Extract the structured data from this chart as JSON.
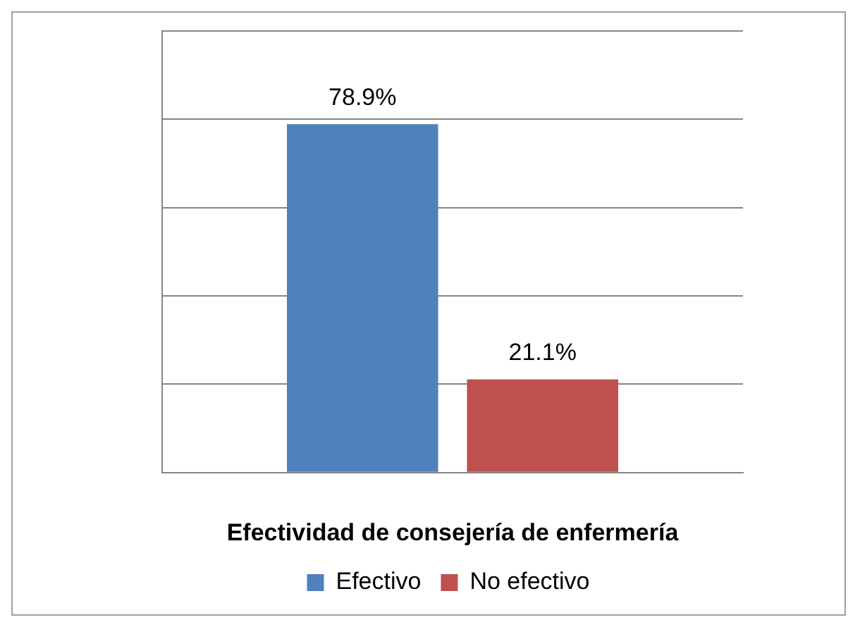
{
  "chart_data": {
    "type": "bar",
    "xlabel": "Efectividad de consejería de enfermería",
    "categories": [
      null
    ],
    "series": [
      {
        "name": "Efectivo",
        "color": "#4f81bd",
        "values": [
          78.9
        ],
        "value_labels": [
          "78.9%"
        ]
      },
      {
        "name": "No efectivo",
        "color": "#c0504d",
        "values": [
          21.1
        ],
        "value_labels": [
          "21.1%"
        ]
      }
    ],
    "ylim": [
      0,
      100
    ],
    "yticks": [
      {
        "value": 0,
        "label": null
      },
      {
        "value": 20,
        "label": null
      },
      {
        "value": 40,
        "label": null
      },
      {
        "value": 60,
        "label": null
      },
      {
        "value": 80,
        "label": null
      },
      {
        "value": 100,
        "label": null
      }
    ],
    "grid": "y",
    "legend": "bottom"
  }
}
